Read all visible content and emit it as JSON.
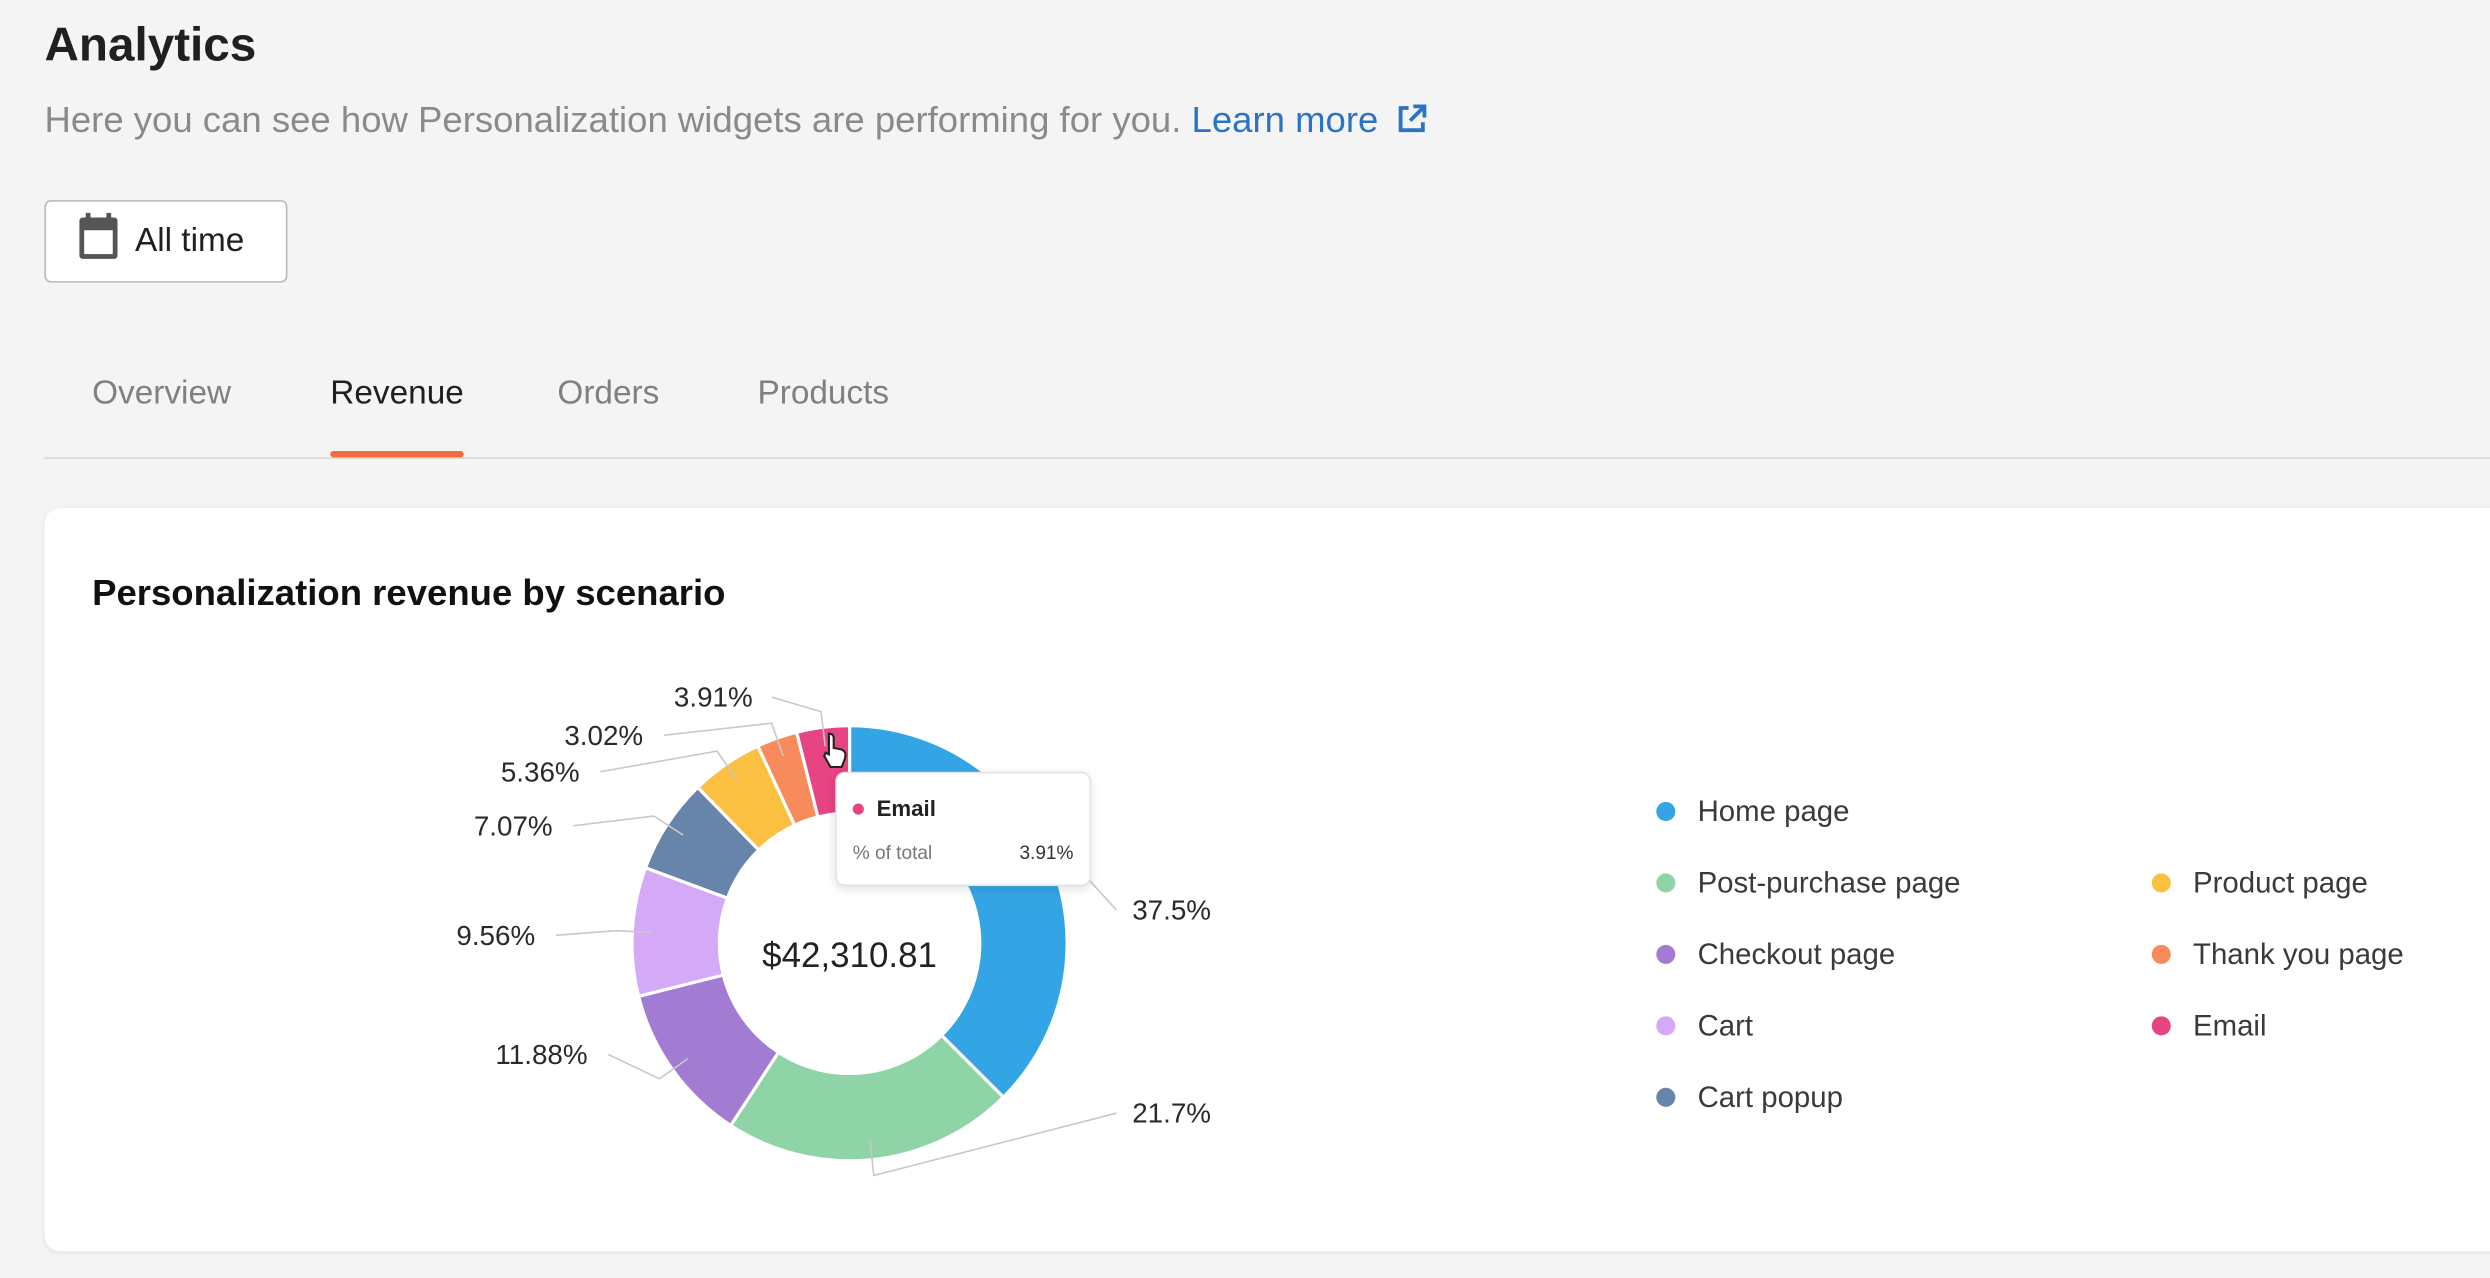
{
  "header": {
    "title": "Analytics",
    "subtitle": "Here you can see how Personalization widgets are performing for you.",
    "learn_more": "Learn more"
  },
  "date_filter": {
    "label": "All time",
    "icon": "calendar-icon"
  },
  "tabs": [
    {
      "label": "Overview",
      "active": false
    },
    {
      "label": "Revenue",
      "active": true
    },
    {
      "label": "Orders",
      "active": false
    },
    {
      "label": "Products",
      "active": false
    }
  ],
  "colors": {
    "accent": "#f26b3a",
    "link": "#2a73c5"
  },
  "card": {
    "title": "Personalization revenue by scenario",
    "center_total": "$42,310.81"
  },
  "tooltip": {
    "series": "Email",
    "label": "% of total",
    "value": "3.91%"
  },
  "chart_data": {
    "type": "pie",
    "title": "Personalization revenue by scenario",
    "categories": [
      "Home page",
      "Post-purchase page",
      "Checkout page",
      "Cart",
      "Cart popup",
      "Product page",
      "Thank you page",
      "Email"
    ],
    "values": [
      37.5,
      21.7,
      11.88,
      9.56,
      7.07,
      5.36,
      3.02,
      3.91
    ],
    "value_labels": [
      "37.5%",
      "21.7%",
      "11.88%",
      "9.56%",
      "7.07%",
      "5.36%",
      "3.02%",
      "3.91%"
    ],
    "colors": [
      "#33a5e4",
      "#8fd4a7",
      "#a27bd3",
      "#d4a9f7",
      "#6784aa",
      "#fbbf42",
      "#f78b5b",
      "#e64483"
    ],
    "legend_placement": "right"
  }
}
